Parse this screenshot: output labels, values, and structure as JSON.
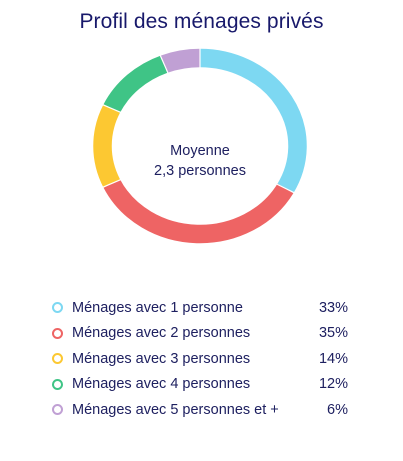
{
  "chart_data": {
    "type": "pie",
    "title": "Profil des ménages privés",
    "center_label": [
      "Moyenne",
      "2,3 personnes"
    ],
    "categories": [
      "Ménages avec 1 personne",
      "Ménages avec 2 personnes",
      "Ménages avec 3 personnes",
      "Ménages avec 4 personnes",
      "Ménages avec 5 personnes et +"
    ],
    "values": [
      33,
      35,
      14,
      12,
      6
    ],
    "value_labels": [
      "33%",
      "35%",
      "14%",
      "12%",
      "6%"
    ],
    "colors": [
      "#7dd8f2",
      "#ee6464",
      "#fcc832",
      "#3fc486",
      "#c0a0d4"
    ],
    "legend_placement": "bottom"
  }
}
